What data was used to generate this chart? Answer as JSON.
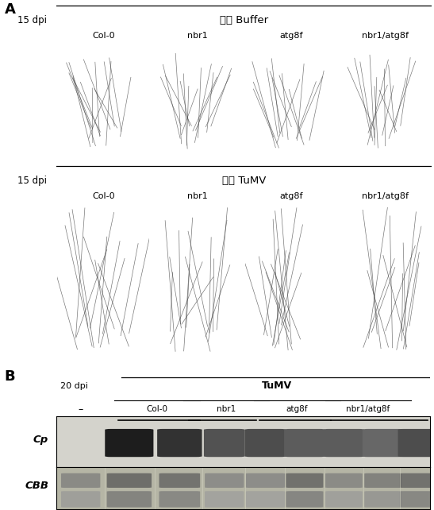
{
  "panel_A_label": "A",
  "panel_B_label": "B",
  "buffer_title": "接种 Buffer",
  "tumv_title_A": "接种 TuMV",
  "tumv_title_B": "TuMV",
  "dpi_15": "15 dpi",
  "dpi_20": "20 dpi",
  "genotypes": [
    "Col-0",
    "nbr1",
    "atg8f",
    "nbr1/atg8f"
  ],
  "neg_label": "–",
  "cp_label": "Cp",
  "cbb_label": "CBB",
  "bg_color": "#ffffff",
  "photo_bg_dark": "#111111",
  "blot_bg": "#c8c8c0",
  "cbb_bg": "#a8a898"
}
